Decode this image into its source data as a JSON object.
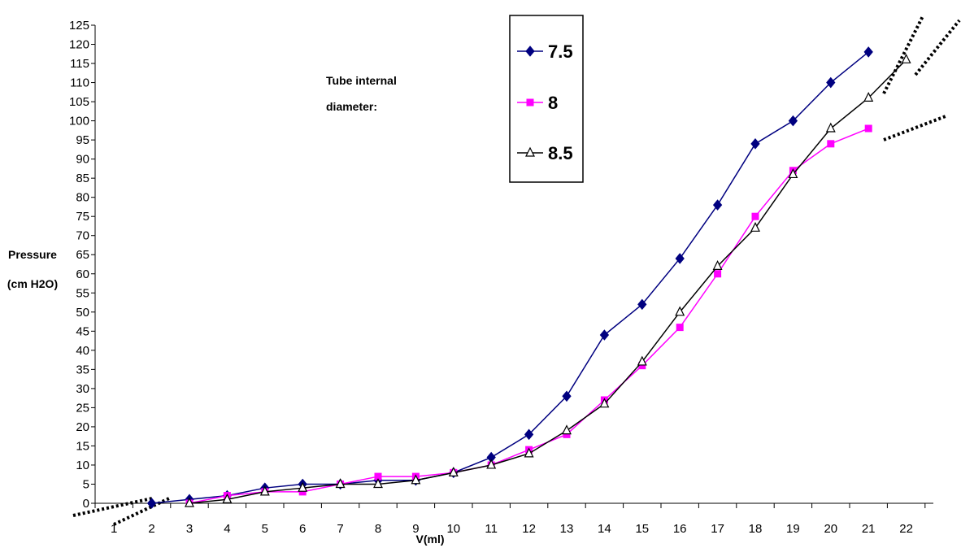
{
  "chart_data": {
    "type": "line",
    "xlabel": "V(ml)",
    "ylabel_lines": [
      "Pressure",
      "(cm H2O)"
    ],
    "annotation_lines": [
      "Tube internal",
      "diameter:"
    ],
    "categories": [
      "1",
      "2",
      "3",
      "4",
      "5",
      "6",
      "7",
      "8",
      "9",
      "10",
      "11",
      "12",
      "13",
      "14",
      "15",
      "16",
      "17",
      "18",
      "19",
      "20",
      "21",
      "22"
    ],
    "y_ticks": [
      0,
      5,
      10,
      15,
      20,
      25,
      30,
      35,
      40,
      45,
      50,
      55,
      60,
      65,
      70,
      75,
      80,
      85,
      90,
      95,
      100,
      105,
      110,
      115,
      120,
      125
    ],
    "ylim": [
      0,
      125
    ],
    "grid": false,
    "legend_position": "top-center",
    "series": [
      {
        "name": "7.5",
        "color": "#000080",
        "marker": "diamond",
        "x": [
          2,
          3,
          4,
          5,
          6,
          7,
          8,
          9,
          10,
          11,
          12,
          13,
          14,
          15,
          16,
          17,
          18,
          19,
          20,
          21
        ],
        "values": [
          0,
          1,
          2,
          4,
          5,
          5,
          6,
          6,
          8,
          12,
          18,
          28,
          44,
          52,
          64,
          78,
          94,
          100,
          110,
          118
        ]
      },
      {
        "name": "8",
        "color": "#ff00ff",
        "marker": "square",
        "x": [
          3,
          4,
          5,
          6,
          7,
          8,
          9,
          10,
          11,
          12,
          13,
          14,
          15,
          16,
          17,
          18,
          19,
          20,
          21
        ],
        "values": [
          0,
          2,
          3,
          3,
          5,
          7,
          7,
          8,
          10,
          14,
          18,
          27,
          36,
          46,
          60,
          75,
          87,
          94,
          98
        ]
      },
      {
        "name": "8.5",
        "color": "#000000",
        "marker": "triangle",
        "x": [
          3,
          4,
          5,
          6,
          7,
          8,
          9,
          10,
          11,
          12,
          13,
          14,
          15,
          16,
          17,
          18,
          19,
          20,
          21,
          22
        ],
        "values": [
          0,
          1,
          3,
          4,
          5,
          5,
          6,
          8,
          10,
          13,
          19,
          26,
          37,
          50,
          62,
          72,
          86,
          98,
          106,
          116
        ]
      }
    ]
  }
}
